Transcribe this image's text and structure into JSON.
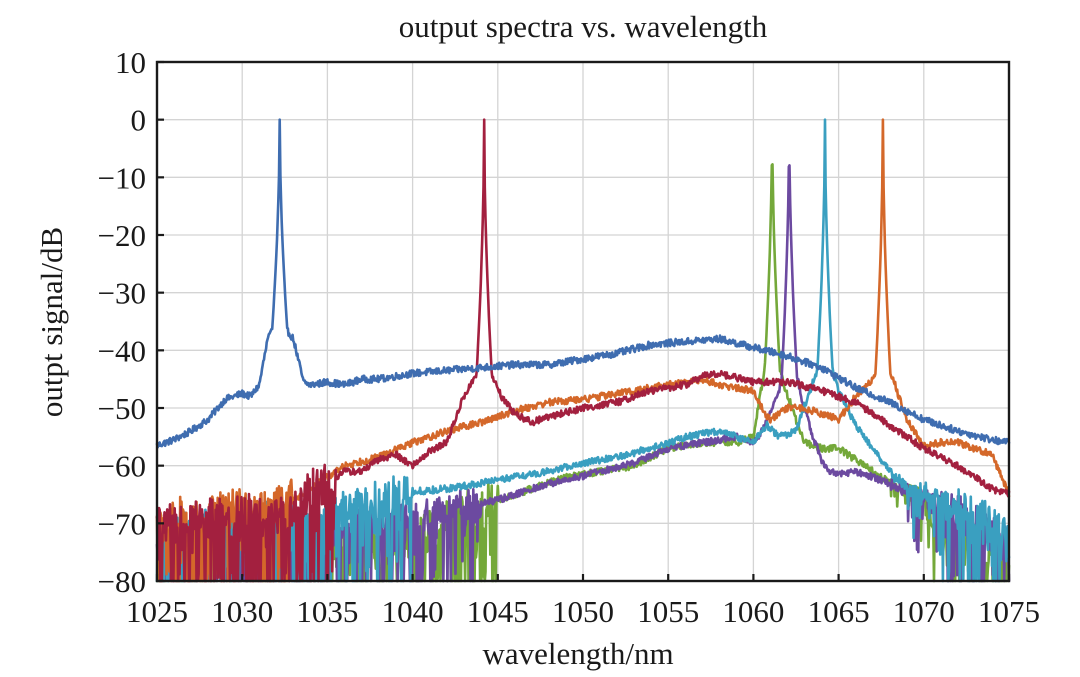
{
  "chart_data": {
    "type": "line",
    "title": "output spectra vs. wavelength",
    "xlabel": "wavelength/nm",
    "ylabel": "outpt signal/dB",
    "xlim": [
      1025,
      1075
    ],
    "ylim": [
      -80,
      10
    ],
    "xticks": [
      1025,
      1030,
      1035,
      1040,
      1045,
      1050,
      1055,
      1060,
      1065,
      1070,
      1075
    ],
    "yticks": [
      10,
      0,
      -10,
      -20,
      -30,
      -40,
      -50,
      -60,
      -70,
      -80
    ],
    "xtick_labels": [
      "1025",
      "1030",
      "1035",
      "1040",
      "1045",
      "1050",
      "1055",
      "1060",
      "1065",
      "1070",
      "1075"
    ],
    "ytick_labels": [
      "10",
      "0",
      "−10",
      "−20",
      "−30",
      "−40",
      "−50",
      "−60",
      "−70",
      "−80"
    ],
    "grid": true,
    "legend": null,
    "series": [
      {
        "name": "blue (peak 1032.2 nm)",
        "color": "#3f6db0",
        "peak_wavelength": 1032.2,
        "peak_db": 0,
        "noise_floor_until": 0,
        "points": [
          [
            1025,
            -56.5
          ],
          [
            1026,
            -55.5
          ],
          [
            1027,
            -54
          ],
          [
            1028,
            -52
          ],
          [
            1029,
            -48.5
          ],
          [
            1030,
            -47.5
          ],
          [
            1030.5,
            -48
          ],
          [
            1031,
            -46
          ],
          [
            1031.5,
            -38
          ],
          [
            1031.9,
            -36
          ],
          [
            1032.2,
            0
          ],
          [
            1032.5,
            -36
          ],
          [
            1033,
            -38
          ],
          [
            1033.6,
            -45.5
          ],
          [
            1034,
            -46
          ],
          [
            1035,
            -45.5
          ],
          [
            1036,
            -46
          ],
          [
            1037,
            -45
          ],
          [
            1038,
            -45
          ],
          [
            1040,
            -44
          ],
          [
            1042,
            -43.5
          ],
          [
            1044,
            -43
          ],
          [
            1046,
            -42.5
          ],
          [
            1048,
            -42.5
          ],
          [
            1050,
            -41.5
          ],
          [
            1052,
            -40.5
          ],
          [
            1054,
            -39
          ],
          [
            1056,
            -38.5
          ],
          [
            1058,
            -38
          ],
          [
            1060,
            -39.5
          ],
          [
            1062,
            -41
          ],
          [
            1064,
            -43
          ],
          [
            1066,
            -46.5
          ],
          [
            1068,
            -49
          ],
          [
            1070,
            -52
          ],
          [
            1072,
            -54
          ],
          [
            1074,
            -55.5
          ],
          [
            1075,
            -56
          ]
        ]
      },
      {
        "name": "red (peak 1044.2 nm)",
        "color": "#a3203f",
        "peak_wavelength": 1044.2,
        "peak_db": 0,
        "noise_floor_until": 1035.5,
        "points": [
          [
            1025,
            -70
          ],
          [
            1033,
            -68
          ],
          [
            1034,
            -64
          ],
          [
            1035,
            -63
          ],
          [
            1036,
            -61
          ],
          [
            1037,
            -61
          ],
          [
            1038,
            -59
          ],
          [
            1039,
            -58
          ],
          [
            1040,
            -60
          ],
          [
            1041,
            -57.5
          ],
          [
            1042,
            -56
          ],
          [
            1043,
            -48
          ],
          [
            1043.8,
            -44
          ],
          [
            1044.2,
            0
          ],
          [
            1044.6,
            -44
          ],
          [
            1045.2,
            -48
          ],
          [
            1046,
            -51
          ],
          [
            1047,
            -52.5
          ],
          [
            1048,
            -51.5
          ],
          [
            1050,
            -50
          ],
          [
            1052,
            -49
          ],
          [
            1054,
            -47
          ],
          [
            1056,
            -46
          ],
          [
            1057,
            -44.5
          ],
          [
            1058,
            -44
          ],
          [
            1060,
            -45.5
          ],
          [
            1062,
            -45.5
          ],
          [
            1064,
            -47
          ],
          [
            1066,
            -49
          ],
          [
            1068,
            -53
          ],
          [
            1070,
            -57
          ],
          [
            1072,
            -60
          ],
          [
            1074,
            -64
          ],
          [
            1075,
            -65
          ]
        ]
      },
      {
        "name": "orange (peak 1067.6 nm)",
        "color": "#d4682a",
        "peak_wavelength": 1067.6,
        "peak_db": 0,
        "noise_floor_until": 1033,
        "points": [
          [
            1025,
            -70
          ],
          [
            1033,
            -66
          ],
          [
            1035,
            -62
          ],
          [
            1036,
            -60
          ],
          [
            1038,
            -58.5
          ],
          [
            1040,
            -56
          ],
          [
            1042,
            -54
          ],
          [
            1044,
            -52.5
          ],
          [
            1046,
            -50.5
          ],
          [
            1048,
            -49
          ],
          [
            1050,
            -48.5
          ],
          [
            1052,
            -47.5
          ],
          [
            1054,
            -46.5
          ],
          [
            1056,
            -45.5
          ],
          [
            1057,
            -45
          ],
          [
            1058,
            -46
          ],
          [
            1060,
            -47
          ],
          [
            1060.7,
            -51
          ],
          [
            1061,
            -52
          ],
          [
            1062,
            -50
          ],
          [
            1063,
            -50
          ],
          [
            1064,
            -51
          ],
          [
            1065,
            -52
          ],
          [
            1066,
            -48
          ],
          [
            1067,
            -45
          ],
          [
            1067.4,
            -44
          ],
          [
            1067.6,
            0
          ],
          [
            1067.8,
            -44
          ],
          [
            1068.2,
            -45
          ],
          [
            1069,
            -52
          ],
          [
            1070,
            -56.5
          ],
          [
            1071,
            -56
          ],
          [
            1072,
            -56
          ],
          [
            1073,
            -57
          ],
          [
            1074,
            -58
          ],
          [
            1075,
            -65
          ]
        ]
      },
      {
        "name": "green (peak 1061.1 nm)",
        "color": "#74a83a",
        "peak_wavelength": 1061.1,
        "peak_db": 0,
        "noise_floor_until": 1045,
        "points": [
          [
            1025,
            -75
          ],
          [
            1040,
            -73
          ],
          [
            1043,
            -68
          ],
          [
            1045,
            -66
          ],
          [
            1047,
            -64
          ],
          [
            1049,
            -62
          ],
          [
            1051,
            -61
          ],
          [
            1053,
            -60
          ],
          [
            1055,
            -57
          ],
          [
            1057,
            -56
          ],
          [
            1059,
            -56
          ],
          [
            1060,
            -55
          ],
          [
            1060.5,
            -46
          ],
          [
            1060.9,
            -40
          ],
          [
            1061.1,
            0
          ],
          [
            1061.3,
            -40
          ],
          [
            1061.8,
            -46
          ],
          [
            1062.5,
            -52
          ],
          [
            1063,
            -56
          ],
          [
            1064,
            -57
          ],
          [
            1065,
            -57
          ],
          [
            1066,
            -59
          ],
          [
            1067,
            -61
          ],
          [
            1068,
            -63
          ],
          [
            1069,
            -64.5
          ],
          [
            1070,
            -66
          ],
          [
            1071,
            -72
          ],
          [
            1072,
            -74
          ],
          [
            1075,
            -76
          ]
        ]
      },
      {
        "name": "purple (peak 1062.1 nm)",
        "color": "#6c4aa0",
        "peak_wavelength": 1062.1,
        "peak_db": 0,
        "noise_floor_until": 1044,
        "points": [
          [
            1025,
            -74
          ],
          [
            1040,
            -70
          ],
          [
            1043,
            -67
          ],
          [
            1045,
            -66
          ],
          [
            1047,
            -64
          ],
          [
            1049,
            -62.5
          ],
          [
            1051,
            -61
          ],
          [
            1053,
            -59.5
          ],
          [
            1055,
            -57
          ],
          [
            1057,
            -56
          ],
          [
            1059,
            -55
          ],
          [
            1060,
            -56
          ],
          [
            1060.5,
            -54
          ],
          [
            1061,
            -51
          ],
          [
            1061.6,
            -46
          ],
          [
            1062,
            -40
          ],
          [
            1062.1,
            0
          ],
          [
            1062.3,
            -40
          ],
          [
            1062.8,
            -48
          ],
          [
            1063.5,
            -55
          ],
          [
            1064,
            -59
          ],
          [
            1064.5,
            -61
          ],
          [
            1065,
            -61.5
          ],
          [
            1066,
            -61
          ],
          [
            1067,
            -62
          ],
          [
            1068,
            -63
          ],
          [
            1069,
            -64.5
          ],
          [
            1070,
            -66
          ],
          [
            1071,
            -67
          ],
          [
            1072,
            -68
          ],
          [
            1073,
            -70
          ],
          [
            1074,
            -72
          ],
          [
            1075,
            -74
          ]
        ]
      },
      {
        "name": "cyan (peak 1064.2 nm)",
        "color": "#3a9fc0",
        "peak_wavelength": 1064.2,
        "peak_db": 0,
        "noise_floor_until": 1040,
        "points": [
          [
            1025,
            -72
          ],
          [
            1035,
            -69
          ],
          [
            1038,
            -66
          ],
          [
            1040,
            -64.5
          ],
          [
            1042,
            -64
          ],
          [
            1044,
            -63
          ],
          [
            1046,
            -62
          ],
          [
            1048,
            -61
          ],
          [
            1050,
            -59.5
          ],
          [
            1052,
            -58.5
          ],
          [
            1054,
            -57
          ],
          [
            1056,
            -55
          ],
          [
            1058,
            -54
          ],
          [
            1059,
            -55
          ],
          [
            1060,
            -56
          ],
          [
            1060.8,
            -53
          ],
          [
            1061.5,
            -55
          ],
          [
            1062.5,
            -54
          ],
          [
            1063.2,
            -48
          ],
          [
            1063.8,
            -43
          ],
          [
            1064.2,
            0
          ],
          [
            1064.6,
            -43
          ],
          [
            1065,
            -47
          ],
          [
            1066,
            -53
          ],
          [
            1067,
            -57
          ],
          [
            1068,
            -61
          ],
          [
            1069,
            -64
          ],
          [
            1070,
            -65
          ],
          [
            1071,
            -66
          ],
          [
            1072,
            -67
          ],
          [
            1073,
            -69
          ],
          [
            1075,
            -72
          ]
        ]
      }
    ]
  }
}
